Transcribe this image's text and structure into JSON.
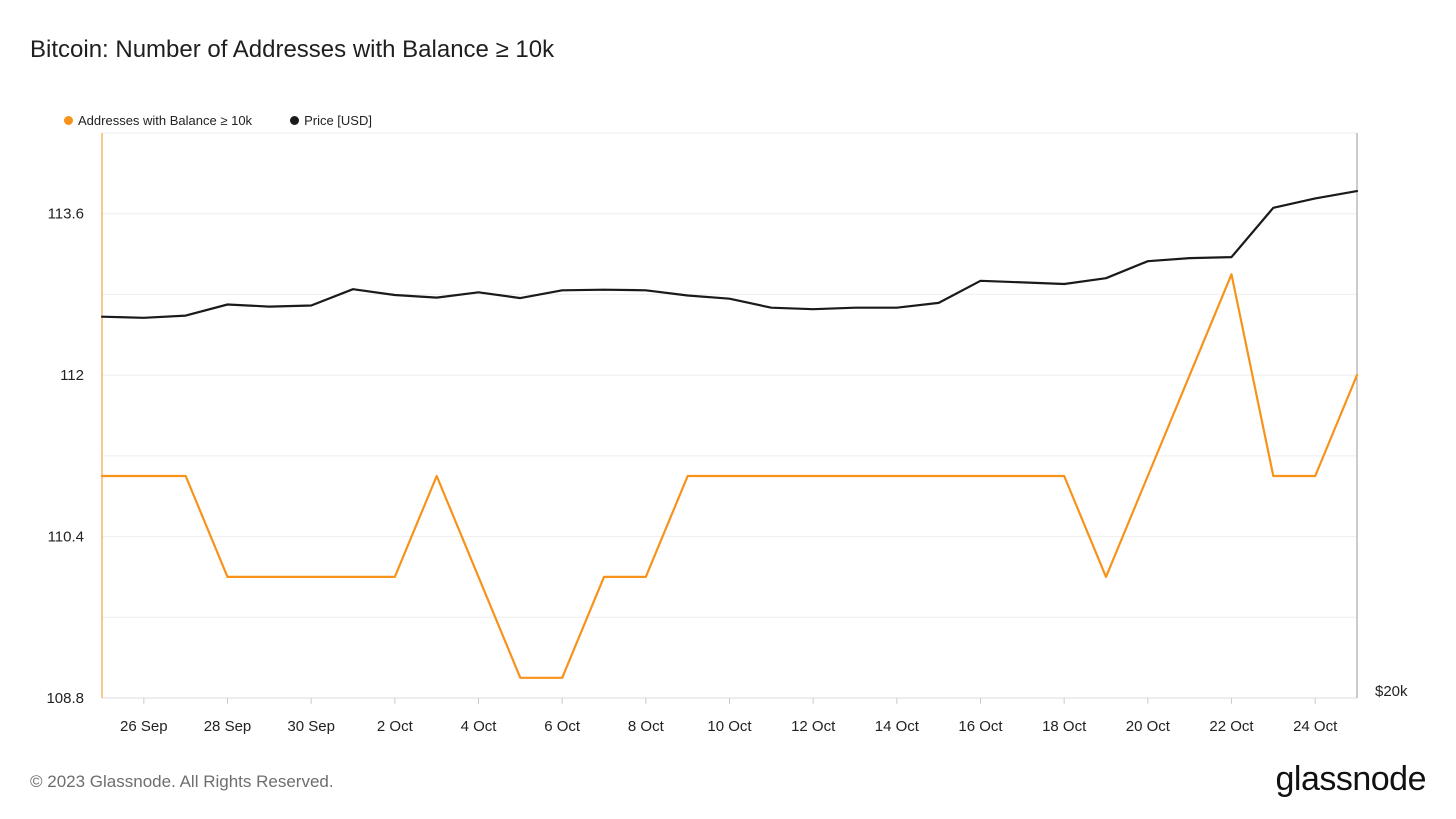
{
  "title": "Bitcoin: Number of Addresses with Balance ≥ 10k",
  "footer": "© 2023 Glassnode. All Rights Reserved.",
  "brand": "glassnode",
  "colors": {
    "addresses": "#f7931a",
    "price": "#1a1a1a",
    "grid": "#eeeeee"
  },
  "legend": [
    {
      "label": "Addresses with Balance ≥ 10k",
      "color": "#f7931a"
    },
    {
      "label": "Price [USD]",
      "color": "#1a1a1a"
    }
  ],
  "chart_data": {
    "type": "line",
    "title": "Bitcoin: Number of Addresses with Balance ≥ 10k",
    "x": [
      "25 Sep",
      "26 Sep",
      "27 Sep",
      "28 Sep",
      "29 Sep",
      "30 Sep",
      "1 Oct",
      "2 Oct",
      "3 Oct",
      "4 Oct",
      "5 Oct",
      "6 Oct",
      "7 Oct",
      "8 Oct",
      "9 Oct",
      "10 Oct",
      "11 Oct",
      "12 Oct",
      "13 Oct",
      "14 Oct",
      "15 Oct",
      "16 Oct",
      "17 Oct",
      "18 Oct",
      "19 Oct",
      "20 Oct",
      "21 Oct",
      "22 Oct",
      "23 Oct",
      "24 Oct",
      "25 Oct"
    ],
    "x_ticks": [
      "26 Sep",
      "28 Sep",
      "30 Sep",
      "2 Oct",
      "4 Oct",
      "6 Oct",
      "8 Oct",
      "10 Oct",
      "12 Oct",
      "14 Oct",
      "16 Oct",
      "18 Oct",
      "20 Oct",
      "22 Oct",
      "24 Oct"
    ],
    "y_left": {
      "ticks": [
        "113.6",
        "112",
        "110.4",
        "108.8"
      ],
      "ylim": [
        108.8,
        114.4
      ]
    },
    "y_right": {
      "ticks": [
        "$20k"
      ]
    },
    "series": [
      {
        "name": "Addresses with Balance ≥ 10k",
        "axis": "left",
        "values": [
          111,
          111,
          111,
          110,
          110,
          110,
          110,
          110,
          111,
          110,
          109,
          109,
          110,
          110,
          111,
          111,
          111,
          111,
          111,
          111,
          111,
          111,
          111,
          111,
          110,
          111,
          112,
          113,
          111,
          111,
          112
        ]
      },
      {
        "name": "Price [USD]",
        "axis": "right",
        "values": [
          26250,
          26230,
          26270,
          26480,
          26440,
          26460,
          26770,
          26660,
          26610,
          26710,
          26600,
          26750,
          26760,
          26750,
          26650,
          26590,
          26420,
          26390,
          26420,
          26420,
          26510,
          26930,
          26900,
          26870,
          26980,
          27310,
          27370,
          27390,
          28370,
          28560,
          28710
        ]
      }
    ]
  }
}
